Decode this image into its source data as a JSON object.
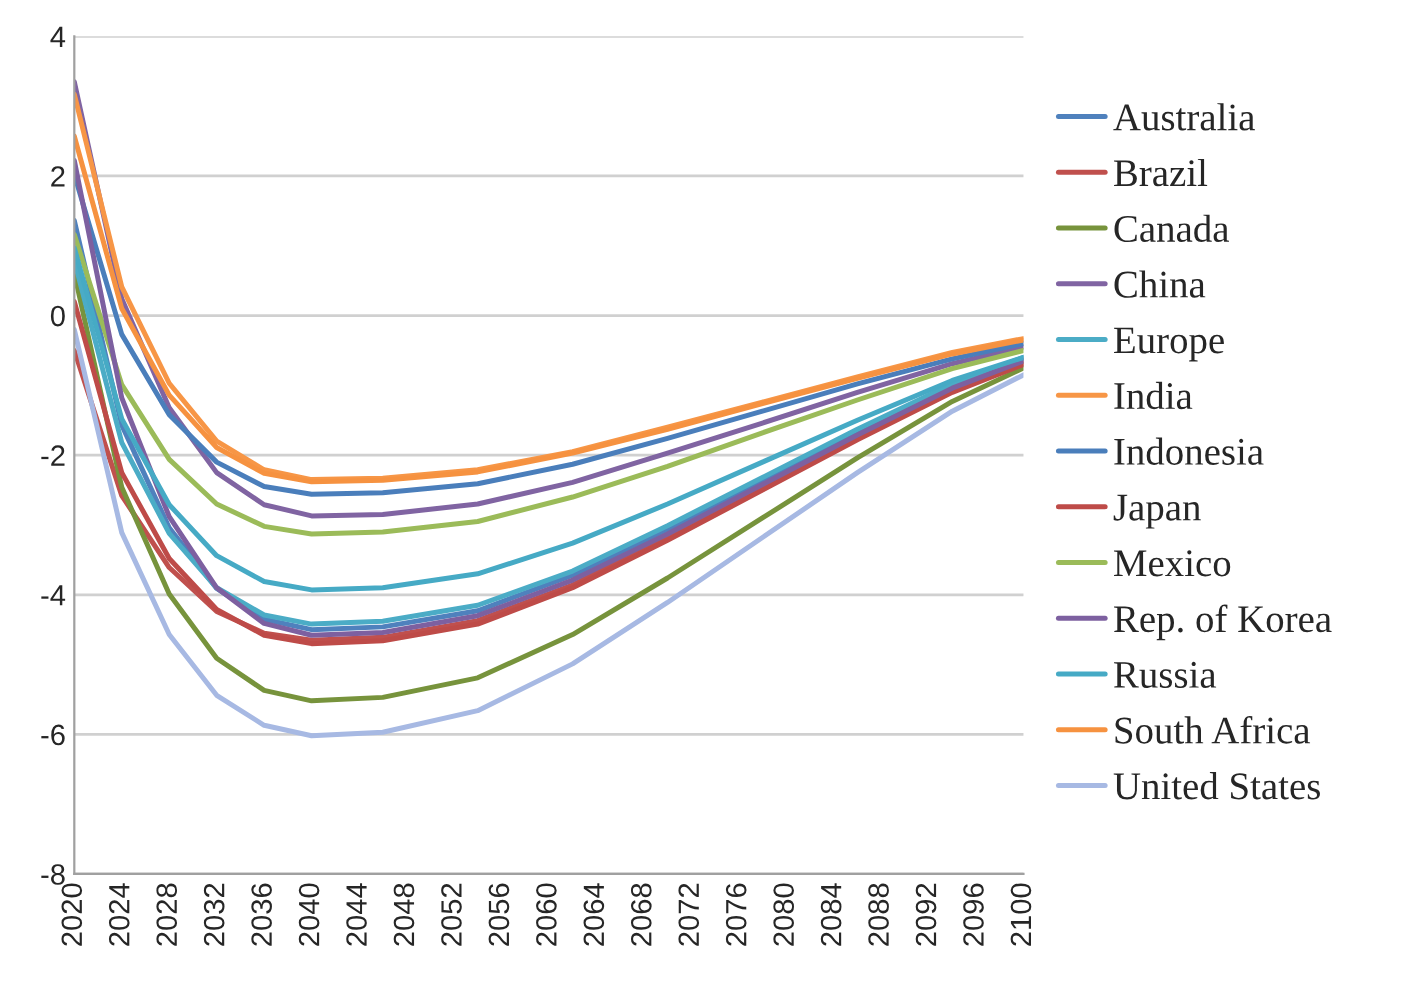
{
  "chart_data": {
    "type": "line",
    "x": [
      2020,
      2024,
      2028,
      2032,
      2036,
      2040,
      2046,
      2054,
      2062,
      2070,
      2078,
      2086,
      2094,
      2100
    ],
    "xlim": [
      2020,
      2100
    ],
    "xticks": [
      2020,
      2024,
      2028,
      2032,
      2036,
      2040,
      2044,
      2048,
      2052,
      2056,
      2060,
      2064,
      2068,
      2072,
      2076,
      2080,
      2084,
      2088,
      2092,
      2096,
      2100
    ],
    "ylim": [
      -8,
      4
    ],
    "yticks": [
      -8,
      -6,
      -4,
      -2,
      0,
      2,
      4
    ],
    "grid": "y",
    "legend": "right",
    "marker": "none",
    "line_style": "solid",
    "series": [
      {
        "name": "Australia",
        "color": "#4f81bd",
        "values": [
          1.36,
          -1.57,
          -3.04,
          -3.91,
          -4.35,
          -4.5,
          -4.46,
          -4.23,
          -3.72,
          -3.06,
          -2.37,
          -1.67,
          -1.01,
          -0.62
        ]
      },
      {
        "name": "Brazil",
        "color": "#c0504d",
        "values": [
          -0.5,
          -2.58,
          -3.61,
          -4.24,
          -4.55,
          -4.65,
          -4.61,
          -4.37,
          -3.86,
          -3.18,
          -2.47,
          -1.75,
          -1.08,
          -0.68
        ]
      },
      {
        "name": "Canada",
        "color": "#77933c",
        "values": [
          0.61,
          -2.46,
          -3.99,
          -4.91,
          -5.37,
          -5.52,
          -5.47,
          -5.19,
          -4.57,
          -3.76,
          -2.9,
          -2.04,
          -1.23,
          -0.75
        ]
      },
      {
        "name": "China",
        "color": "#8064a2",
        "values": [
          3.35,
          0.24,
          -1.32,
          -2.25,
          -2.71,
          -2.87,
          -2.85,
          -2.7,
          -2.39,
          -1.97,
          -1.54,
          -1.1,
          -0.69,
          -0.45
        ]
      },
      {
        "name": "Europe",
        "color": "#4bacc6",
        "values": [
          0.79,
          -1.82,
          -3.12,
          -3.9,
          -4.29,
          -4.42,
          -4.38,
          -4.15,
          -3.66,
          -3.01,
          -2.32,
          -1.63,
          -0.98,
          -0.6
        ]
      },
      {
        "name": "India",
        "color": "#f79646",
        "values": [
          3.17,
          0.41,
          -0.97,
          -1.8,
          -2.21,
          -2.35,
          -2.33,
          -2.21,
          -1.95,
          -1.6,
          -1.24,
          -0.88,
          -0.53,
          -0.33
        ]
      },
      {
        "name": "Indonesia",
        "color": "#4a7ebb",
        "values": [
          2.02,
          -0.27,
          -1.42,
          -2.1,
          -2.45,
          -2.56,
          -2.54,
          -2.41,
          -2.13,
          -1.76,
          -1.37,
          -0.98,
          -0.62,
          -0.4
        ]
      },
      {
        "name": "Japan",
        "color": "#be4b48",
        "values": [
          0.2,
          -2.25,
          -3.48,
          -4.21,
          -4.58,
          -4.7,
          -4.66,
          -4.42,
          -3.9,
          -3.22,
          -2.5,
          -1.78,
          -1.1,
          -0.7
        ]
      },
      {
        "name": "Mexico",
        "color": "#9bbb59",
        "values": [
          1.16,
          -0.99,
          -2.06,
          -2.7,
          -3.02,
          -3.13,
          -3.1,
          -2.95,
          -2.6,
          -2.16,
          -1.68,
          -1.21,
          -0.76,
          -0.5
        ]
      },
      {
        "name": "Rep. of Korea",
        "color": "#7d60a0",
        "values": [
          2.22,
          -1.18,
          -2.88,
          -3.9,
          -4.41,
          -4.58,
          -4.54,
          -4.3,
          -3.79,
          -3.13,
          -2.42,
          -1.71,
          -1.04,
          -0.65
        ]
      },
      {
        "name": "Russia",
        "color": "#46aac5",
        "values": [
          0.97,
          -1.48,
          -2.71,
          -3.44,
          -3.81,
          -3.93,
          -3.9,
          -3.7,
          -3.26,
          -2.7,
          -2.1,
          -1.5,
          -0.93,
          -0.6
        ]
      },
      {
        "name": "South Africa",
        "color": "#f69240",
        "values": [
          2.57,
          0.1,
          -1.14,
          -1.89,
          -2.26,
          -2.38,
          -2.36,
          -2.24,
          -1.97,
          -1.63,
          -1.26,
          -0.9,
          -0.55,
          -0.35
        ]
      },
      {
        "name": "United States",
        "color": "#a7b9e3",
        "values": [
          -0.2,
          -3.11,
          -4.57,
          -5.44,
          -5.87,
          -6.02,
          -5.97,
          -5.66,
          -4.99,
          -4.11,
          -3.18,
          -2.25,
          -1.37,
          -0.85
        ]
      }
    ]
  }
}
